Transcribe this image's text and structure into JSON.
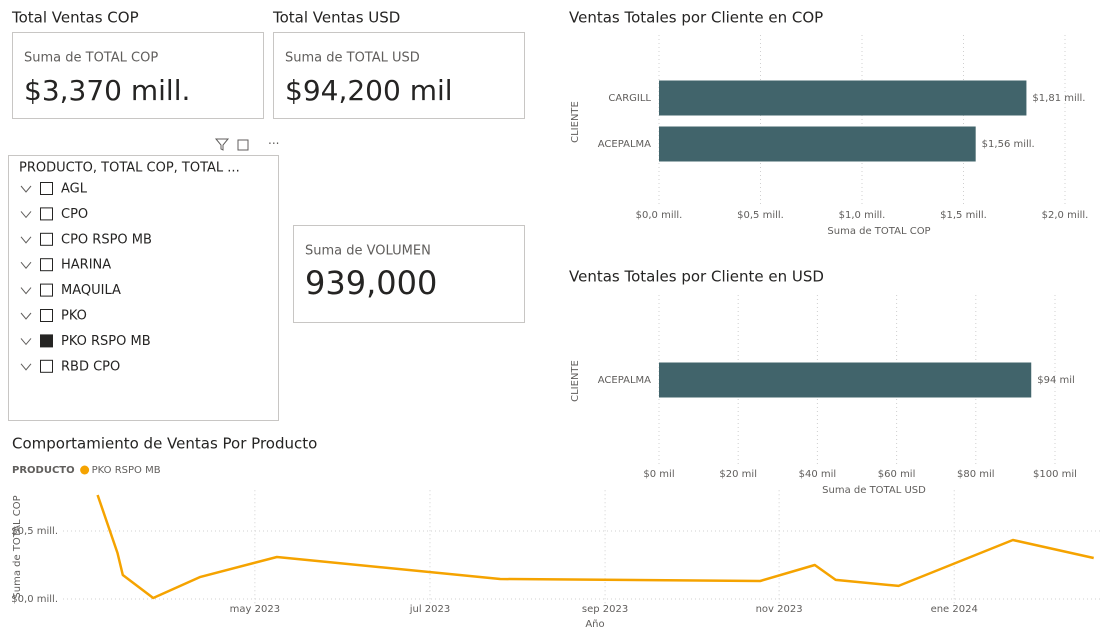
{
  "cards": [
    {
      "title": "Total Ventas COP",
      "label": "Suma de TOTAL COP",
      "value": "$3,370 mill."
    },
    {
      "title": "Total Ventas USD",
      "label": "Suma de TOTAL USD",
      "value": "$94,200 mil"
    },
    {
      "label": "Suma de VOLUMEN",
      "value": "939,000"
    }
  ],
  "slicer": {
    "header": "PRODUCTO, TOTAL COP, TOTAL ...",
    "items": [
      {
        "label": "AGL",
        "checked": false
      },
      {
        "label": "CPO",
        "checked": false
      },
      {
        "label": "CPO RSPO MB",
        "checked": false
      },
      {
        "label": "HARINA",
        "checked": false
      },
      {
        "label": "MAQUILA",
        "checked": false
      },
      {
        "label": "PKO",
        "checked": false
      },
      {
        "label": "PKO RSPO MB",
        "checked": true
      },
      {
        "label": "RBD CPO",
        "checked": false
      }
    ]
  },
  "chart_data": [
    {
      "type": "hbar",
      "title": "Ventas Totales por Cliente en COP",
      "categories": [
        "CARGILL",
        "ACEPALMA"
      ],
      "values": [
        1.81,
        1.56
      ],
      "value_labels": [
        "$1,81 mill.",
        "$1,56 mill."
      ],
      "color": "#41646b",
      "x_label": "Suma de TOTAL COP",
      "y_label": "CLIENTE",
      "xlim": [
        0,
        2.0
      ],
      "xticks": [
        {
          "value": 0,
          "label": "$0,0 mill."
        },
        {
          "value": 0.5,
          "label": "$0,5 mill."
        },
        {
          "value": 1.0,
          "label": "$1,0 mill."
        },
        {
          "value": 1.5,
          "label": "$1,5 mill."
        },
        {
          "value": 2.0,
          "label": "$2,0 mill."
        }
      ],
      "grid": true
    },
    {
      "type": "hbar",
      "title": "Ventas Totales por Cliente en USD",
      "categories": [
        "ACEPALMA"
      ],
      "values": [
        94
      ],
      "value_labels": [
        "$94 mil"
      ],
      "color": "#41646b",
      "x_label": "Suma de TOTAL USD",
      "y_label": "CLIENTE",
      "xlim": [
        0,
        100
      ],
      "xticks": [
        {
          "value": 0,
          "label": "$0 mil"
        },
        {
          "value": 20,
          "label": "$20 mil"
        },
        {
          "value": 40,
          "label": "$40 mil"
        },
        {
          "value": 60,
          "label": "$60 mil"
        },
        {
          "value": 80,
          "label": "$80 mil"
        },
        {
          "value": 100,
          "label": "$100 mil"
        }
      ],
      "grid": true
    },
    {
      "type": "line",
      "title": "Comportamiento de Ventas Por Producto",
      "legend_title": "PRODUCTO",
      "x_label": "Año",
      "y_label": "Suma de TOTAL COP",
      "x": [
        2023.183,
        2023.202,
        2023.207,
        2023.236,
        2023.281,
        2023.354,
        2023.567,
        2023.815,
        2023.867,
        2023.887,
        2023.947,
        2024.056,
        2024.133
      ],
      "series": [
        {
          "name": "PKO RSPO MB",
          "color": "#f5a300",
          "values": [
            0.765,
            0.338,
            0.176,
            0.007,
            0.162,
            0.309,
            0.147,
            0.132,
            0.25,
            0.14,
            0.096,
            0.434,
            0.301
          ]
        }
      ],
      "xlim": [
        2023.15,
        2024.14
      ],
      "xticks": [
        {
          "value": 2023.333,
          "label": "may 2023"
        },
        {
          "value": 2023.5,
          "label": "jul 2023"
        },
        {
          "value": 2023.667,
          "label": "sep 2023"
        },
        {
          "value": 2023.833,
          "label": "nov 2023"
        },
        {
          "value": 2024.0,
          "label": "ene 2024"
        }
      ],
      "ylim": [
        -0.04,
        0.8
      ],
      "yticks": [
        {
          "value": 0,
          "label": "$0,0 mill."
        },
        {
          "value": 0.5,
          "label": "$0,5 mill."
        }
      ],
      "grid": true
    }
  ]
}
